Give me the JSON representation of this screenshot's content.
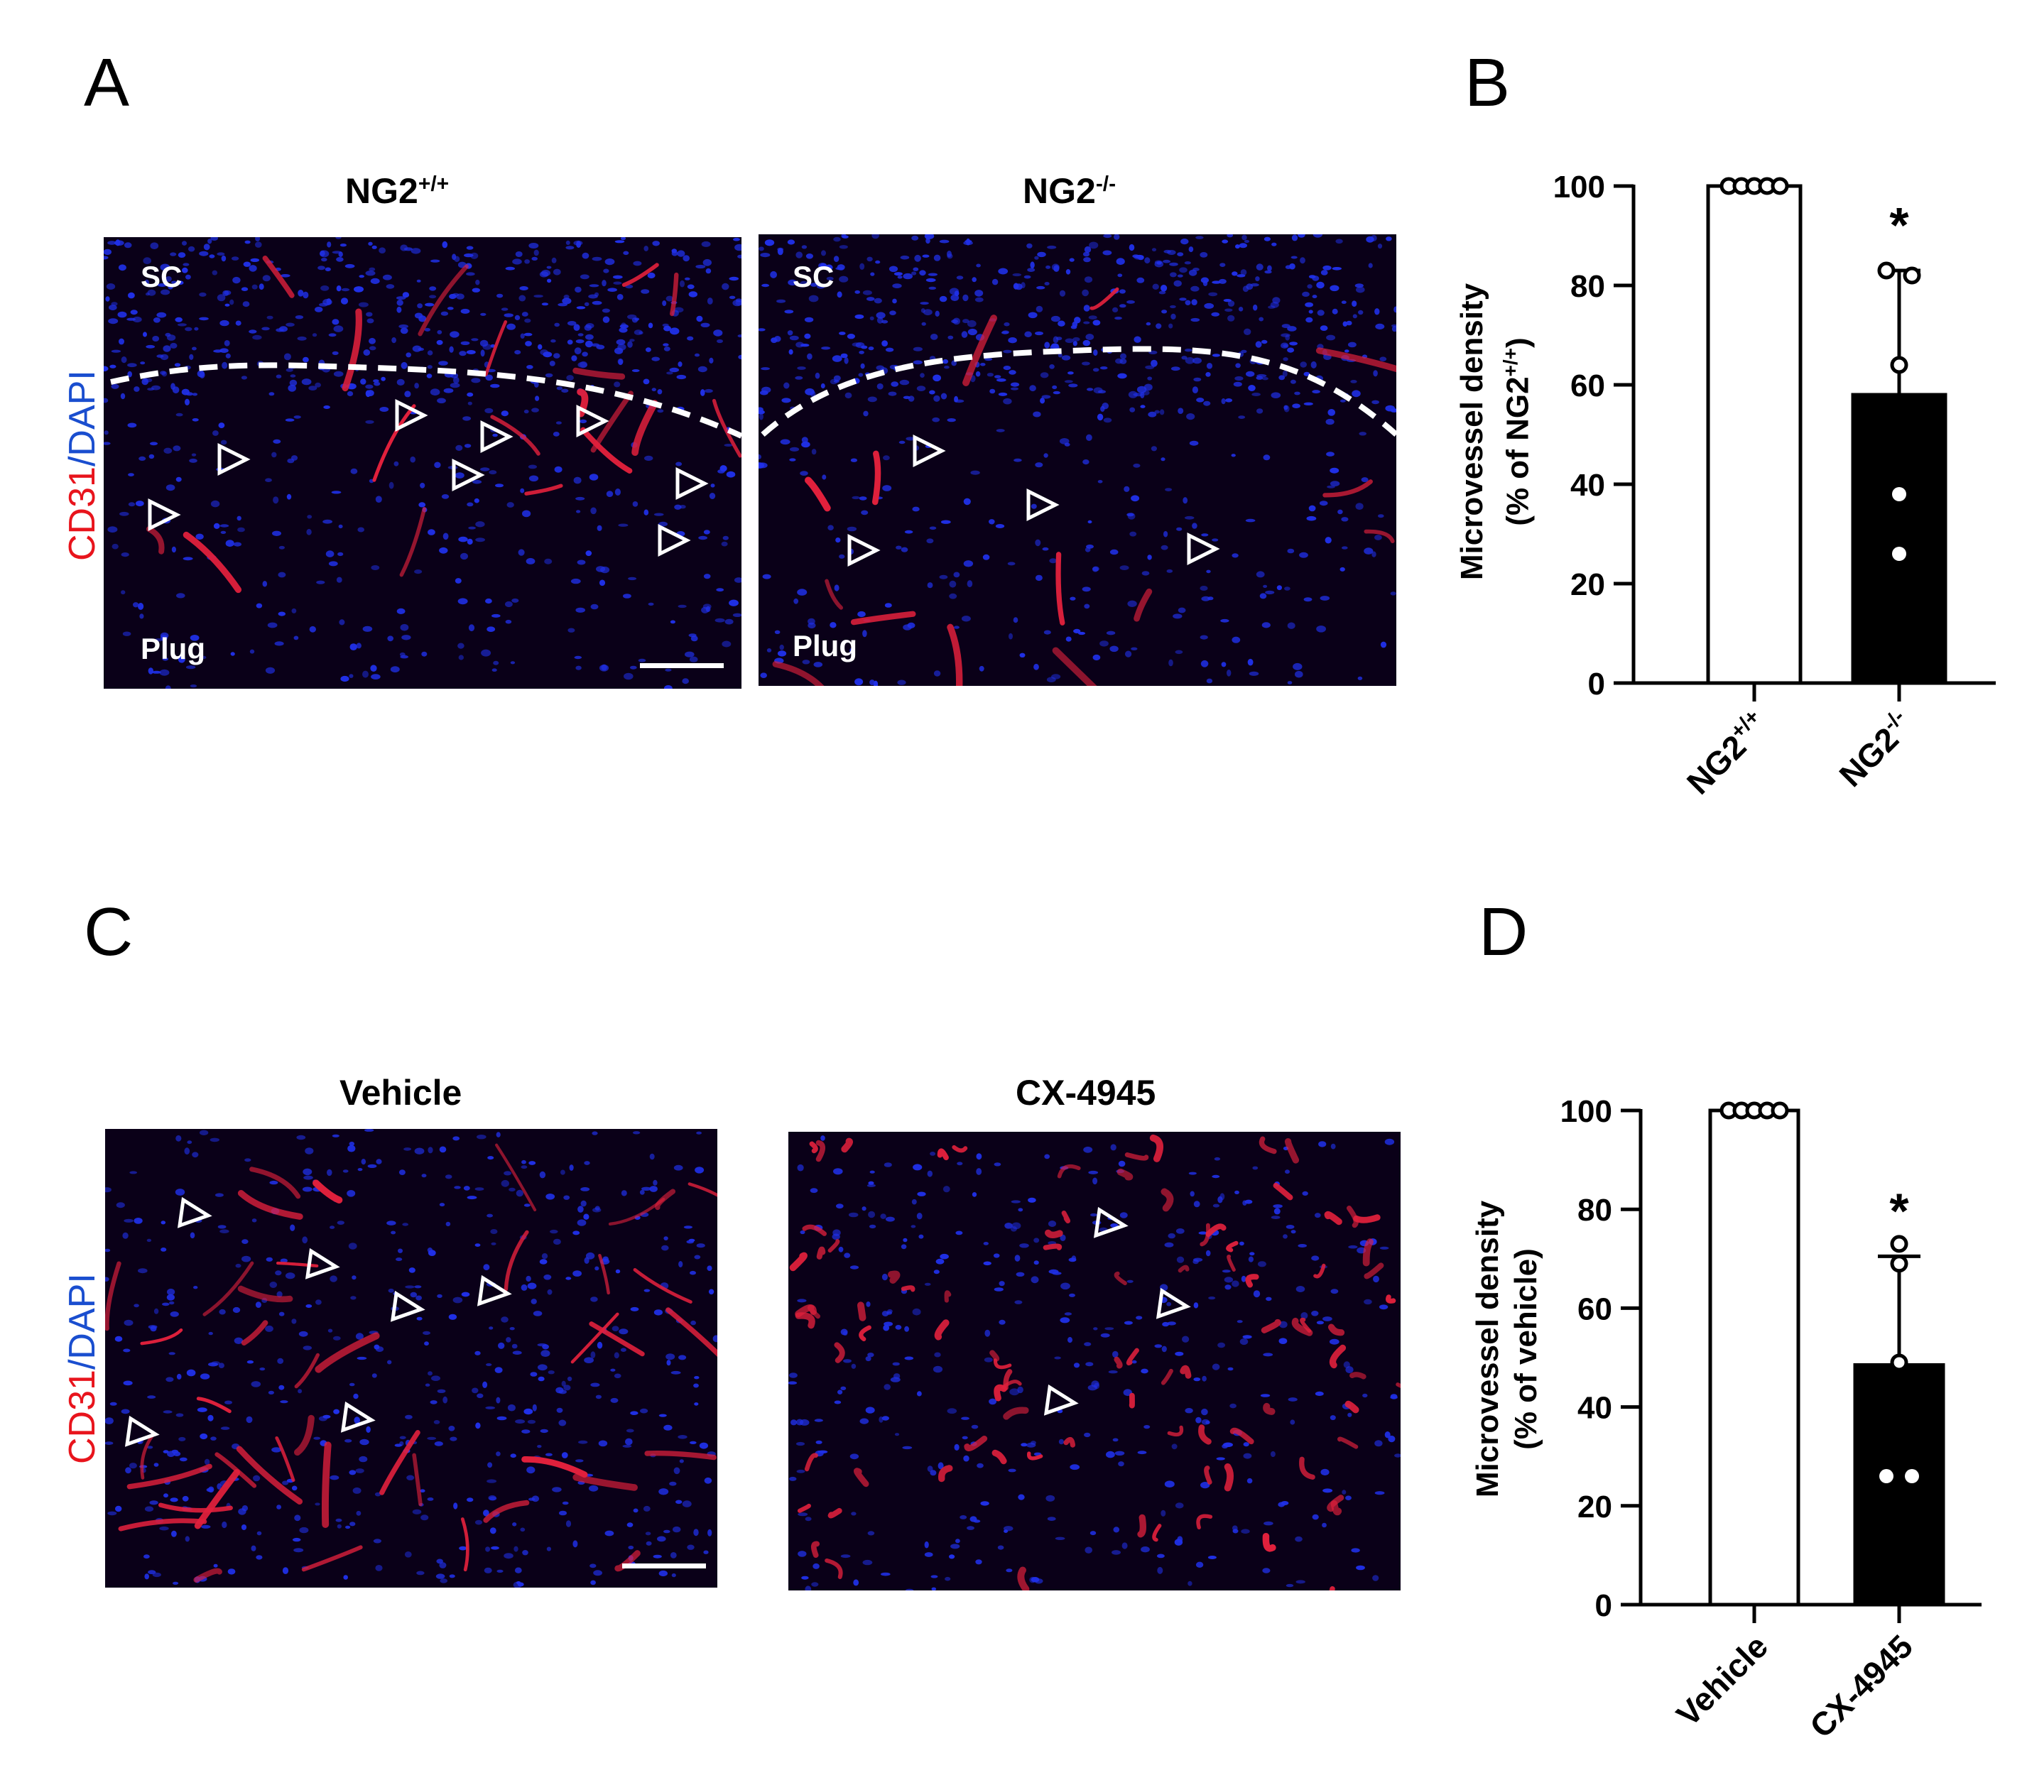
{
  "panel_letters": {
    "a": "A",
    "b": "B",
    "c": "C",
    "d": "D"
  },
  "panel_a": {
    "stain_label": {
      "red": "CD31",
      "sep": "/",
      "blue": "DAPI"
    },
    "images": [
      {
        "title_base": "NG2",
        "title_sup": "+/+",
        "top_label": "SC",
        "bottom_label": "Plug",
        "scale_bar": true
      },
      {
        "title_base": "NG2",
        "title_sup": "-/-",
        "top_label": "SC",
        "bottom_label": "Plug",
        "scale_bar": false
      }
    ]
  },
  "panel_c": {
    "stain_label": {
      "red": "CD31",
      "sep": "/",
      "blue": "DAPI"
    },
    "images": [
      {
        "title": "Vehicle",
        "scale_bar": true
      },
      {
        "title": "CX-4945",
        "scale_bar": false
      }
    ]
  },
  "chart_data": [
    {
      "type": "bar",
      "panel": "B",
      "categories": [
        "NG2+/+",
        "NG2-/-"
      ],
      "category_labels": [
        {
          "base": "NG2",
          "sup": "+/+"
        },
        {
          "base": "NG2",
          "sup": "-/-"
        }
      ],
      "values": [
        100,
        58
      ],
      "error_sd": [
        0,
        25
      ],
      "points": [
        [
          100,
          100,
          100,
          100,
          100
        ],
        [
          83,
          82,
          64,
          38,
          26
        ]
      ],
      "bar_colors": [
        "#ffffff",
        "#000000"
      ],
      "significance": [
        null,
        "*"
      ],
      "ylabel_line1": "Microvessel density",
      "ylabel_line2_base": "(% of NG2",
      "ylabel_line2_sup": "+/+",
      "ylabel_line2_end": ")",
      "ylim": [
        0,
        100
      ],
      "yticks": [
        0,
        20,
        40,
        60,
        80,
        100
      ]
    },
    {
      "type": "bar",
      "panel": "D",
      "categories": [
        "Vehicle",
        "CX-4945"
      ],
      "values": [
        100,
        48.5
      ],
      "error_sd": [
        0,
        22
      ],
      "points": [
        [
          100,
          100,
          100,
          100,
          100
        ],
        [
          73,
          69,
          49,
          26,
          26
        ]
      ],
      "bar_colors": [
        "#ffffff",
        "#000000"
      ],
      "significance": [
        null,
        "*"
      ],
      "ylabel_line1": "Microvessel density",
      "ylabel_line2": "(% of vehicle)",
      "ylim": [
        0,
        100
      ],
      "yticks": [
        0,
        20,
        40,
        60,
        80,
        100
      ]
    }
  ]
}
